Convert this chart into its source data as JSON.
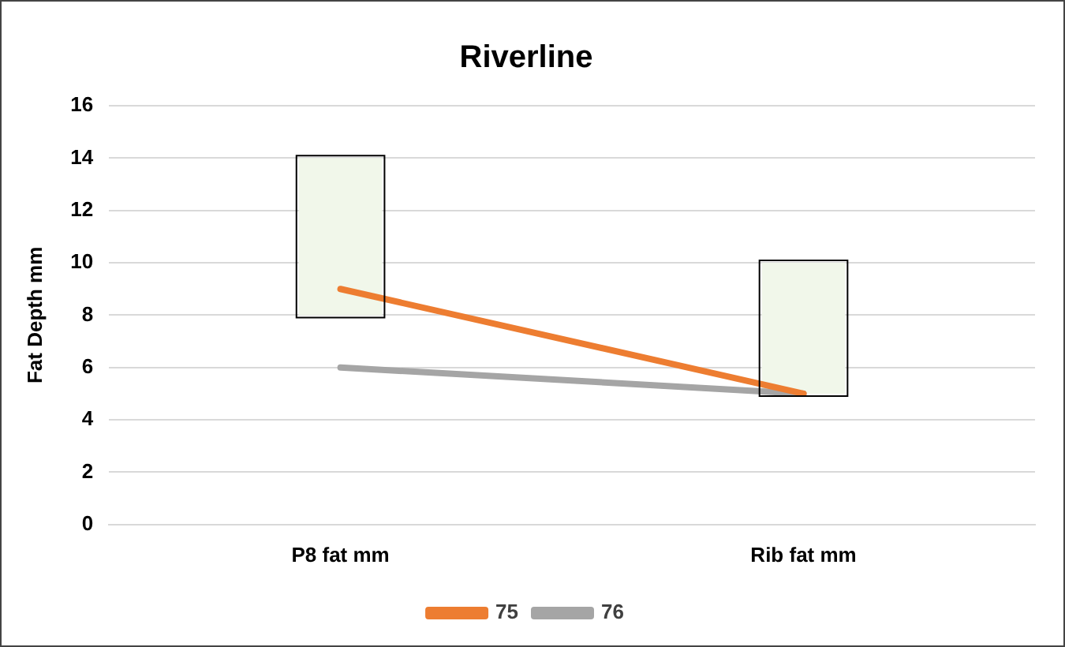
{
  "chart_data": {
    "type": "line",
    "title": "Riverline",
    "ylabel": "Fat Depth mm",
    "categories": [
      "P8 fat mm",
      "Rib fat mm"
    ],
    "series": [
      {
        "type": "bar",
        "color": "#f1f7ea",
        "base": [
          8,
          5
        ],
        "values": [
          6,
          5
        ]
      },
      {
        "name": "75",
        "color": "#ed7d31",
        "values": [
          9,
          5
        ]
      },
      {
        "name": "76",
        "color": "#a5a5a5",
        "values": [
          6,
          5
        ]
      }
    ],
    "ylim": [
      0,
      16
    ],
    "yticks": [
      0,
      2,
      4,
      6,
      8,
      10,
      12,
      14,
      16
    ],
    "grid": "y",
    "legend": "bottom",
    "marker": "none",
    "line_style": "solid"
  }
}
